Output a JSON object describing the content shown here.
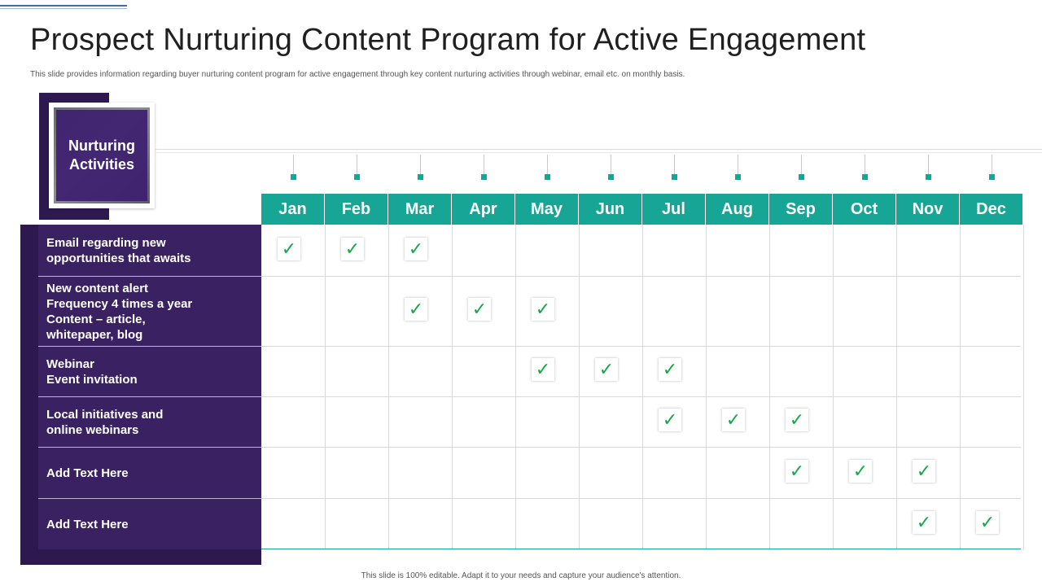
{
  "slide": {
    "title": "Prospect Nurturing Content Program for Active Engagement",
    "subtitle": "This slide provides information regarding buyer nurturing content program for active engagement through key content nurturing activities through webinar, email etc. on monthly basis.",
    "footer": "This slide is 100% editable. Adapt it to your needs and capture your audience's attention."
  },
  "card": {
    "line1": "Nurturing",
    "line2": "Activities"
  },
  "months": [
    "Jan",
    "Feb",
    "Mar",
    "Apr",
    "May",
    "Jun",
    "Jul",
    "Aug",
    "Sep",
    "Oct",
    "Nov",
    "Dec"
  ],
  "check_glyph": "✓",
  "colors": {
    "accent_teal": "#17a596",
    "panel_purple": "#2e1850",
    "check_green": "#17a845"
  },
  "activities": [
    {
      "label": "Email regarding new\nopportunities that awaits",
      "months": [
        "Jan",
        "Feb",
        "Mar"
      ]
    },
    {
      "label": "New content alert\nFrequency 4 times a year\nContent – article,\nwhitepaper, blog",
      "months": [
        "Mar",
        "Apr",
        "May"
      ]
    },
    {
      "label": "Webinar\nEvent invitation",
      "months": [
        "May",
        "Jun",
        "Jul"
      ]
    },
    {
      "label": "Local initiatives  and\nonline webinars",
      "months": [
        "Jul",
        "Aug",
        "Sep"
      ]
    },
    {
      "label": "Add Text Here",
      "months": [
        "Sep",
        "Oct",
        "Nov"
      ]
    },
    {
      "label": "Add Text Here",
      "months": [
        "Nov",
        "Dec"
      ]
    }
  ]
}
